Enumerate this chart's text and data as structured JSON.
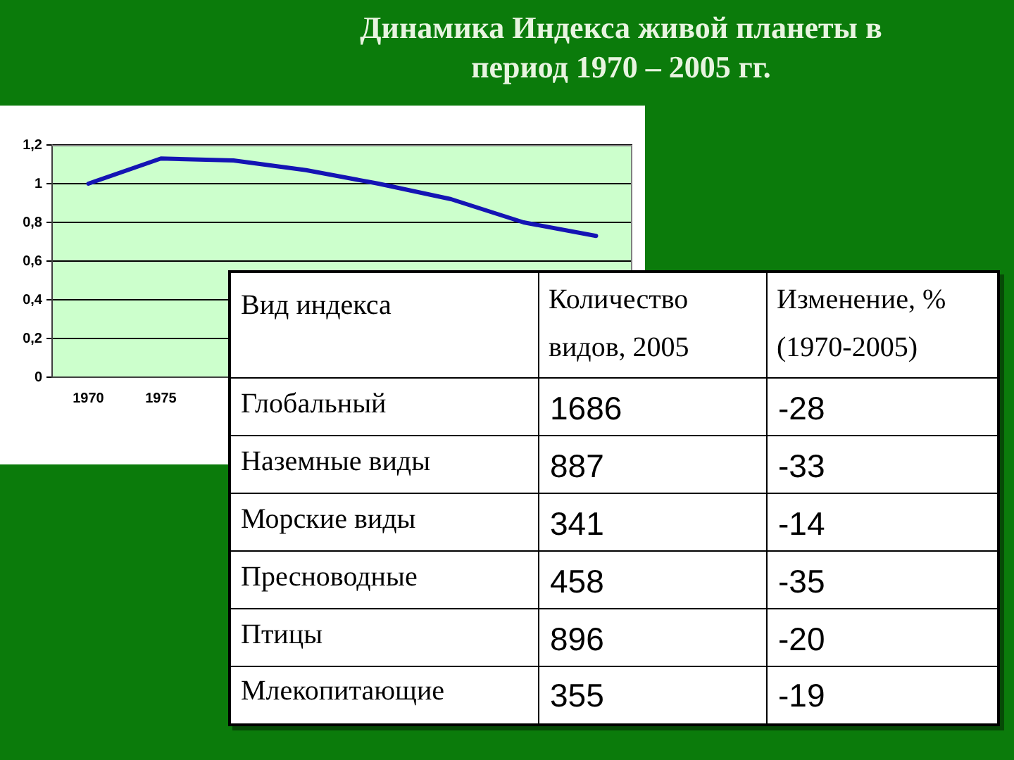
{
  "chart_data": [
    {
      "type": "line",
      "title": "Динамика Индекса живой планеты в период 1970 – 2005 гг.",
      "categories": [
        "1970",
        "1975",
        null,
        null,
        null,
        null,
        null,
        null
      ],
      "series": [
        {
          "color": "#1414b4",
          "values": [
            1.0,
            1.13,
            1.12,
            1.07,
            1.0,
            0.92,
            0.8,
            0.73
          ]
        }
      ],
      "ylim": [
        0,
        1.2
      ],
      "yticks": [
        0,
        {
          "value": 0.2,
          "label": "0,2"
        },
        {
          "value": 0.4,
          "label": "0,4"
        },
        {
          "value": 0.6,
          "label": "0,6"
        },
        {
          "value": 0.8,
          "label": "0,8"
        },
        1,
        {
          "value": 1.2,
          "label": "1,2"
        }
      ],
      "grid": "y",
      "marker": "none"
    },
    {
      "type": "other",
      "xlabel": "Вид индекса",
      "categories": [
        "Глобальный",
        "Наземные виды",
        "Морские виды",
        "Пресноводные",
        "Птицы",
        "Млекопитающие"
      ],
      "series": [
        {
          "name": "Количество видов, 2005",
          "color": "#000000",
          "values": [
            1686,
            887,
            341,
            458,
            896,
            355
          ]
        },
        {
          "name": "Изменение, % (1970-2005)",
          "color": "#000000",
          "values": [
            -28,
            -33,
            -14,
            -35,
            -20,
            -19
          ]
        }
      ],
      "data_labels": true
    }
  ]
}
